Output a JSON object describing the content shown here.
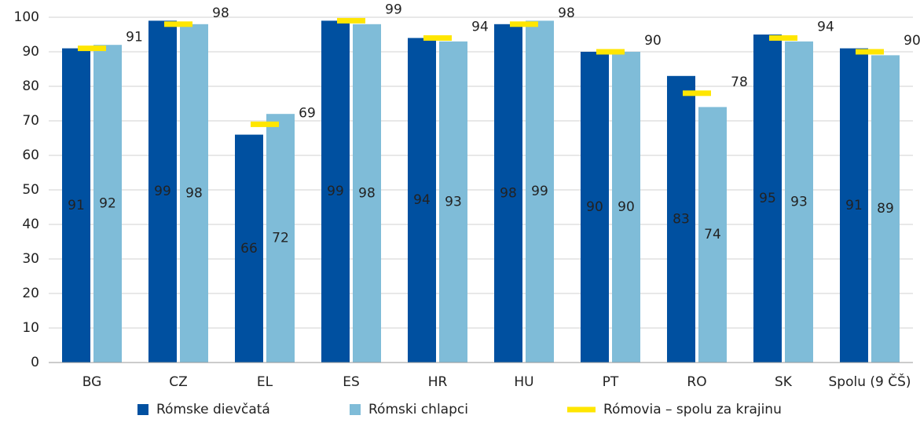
{
  "chart_data": {
    "type": "bar",
    "categories": [
      "BG",
      "CZ",
      "EL",
      "ES",
      "HR",
      "HU",
      "PT",
      "RO",
      "SK",
      "Spolu (9 ČŠ)"
    ],
    "series": [
      {
        "name": "Rómske dievčatá",
        "color": "#0050a0",
        "values": [
          91,
          99,
          66,
          99,
          94,
          98,
          90,
          83,
          95,
          91
        ]
      },
      {
        "name": "Rómski chlapci",
        "color": "#7fbcd8",
        "values": [
          92,
          98,
          72,
          98,
          93,
          99,
          90,
          74,
          93,
          89
        ]
      },
      {
        "name": "Rómovia – spolu za krajinu",
        "color": "#ffe600",
        "marker": "dash",
        "values": [
          91,
          98,
          69,
          99,
          94,
          98,
          90,
          78,
          94,
          90
        ]
      }
    ],
    "ylim": [
      0,
      100
    ],
    "yticks": [
      0,
      10,
      20,
      30,
      40,
      50,
      60,
      70,
      80,
      90,
      100
    ],
    "grid": true,
    "legend": "bottom"
  }
}
